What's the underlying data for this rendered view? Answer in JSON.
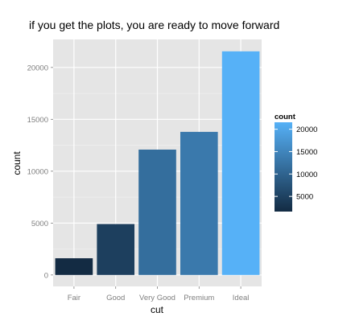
{
  "chart_data": {
    "type": "bar",
    "title": "if you get the plots, you are ready to move forward",
    "xlabel": "cut",
    "ylabel": "count",
    "categories": [
      "Fair",
      "Good",
      "Very Good",
      "Premium",
      "Ideal"
    ],
    "values": [
      1610,
      4906,
      12082,
      13791,
      21551
    ],
    "ylim": [
      -1100,
      22700
    ],
    "yticks": [
      0,
      5000,
      10000,
      15000,
      20000
    ],
    "ytick_labels": [
      "0",
      "5000",
      "10000",
      "15000",
      "20000"
    ],
    "grid": true,
    "legend": {
      "title": "count",
      "position": "right",
      "type": "colorbar",
      "breaks": [
        5000,
        10000,
        15000,
        20000
      ],
      "break_labels": [
        "5000",
        "10000",
        "15000",
        "20000"
      ],
      "range": [
        1610,
        21551
      ]
    },
    "colors": {
      "low": "#132B43",
      "high": "#56B1F7",
      "panel_background": "#e5e5e5",
      "grid_major": "#ffffff",
      "grid_minor": "#f2f2f2",
      "tick_text": "#7f7f7f"
    }
  }
}
